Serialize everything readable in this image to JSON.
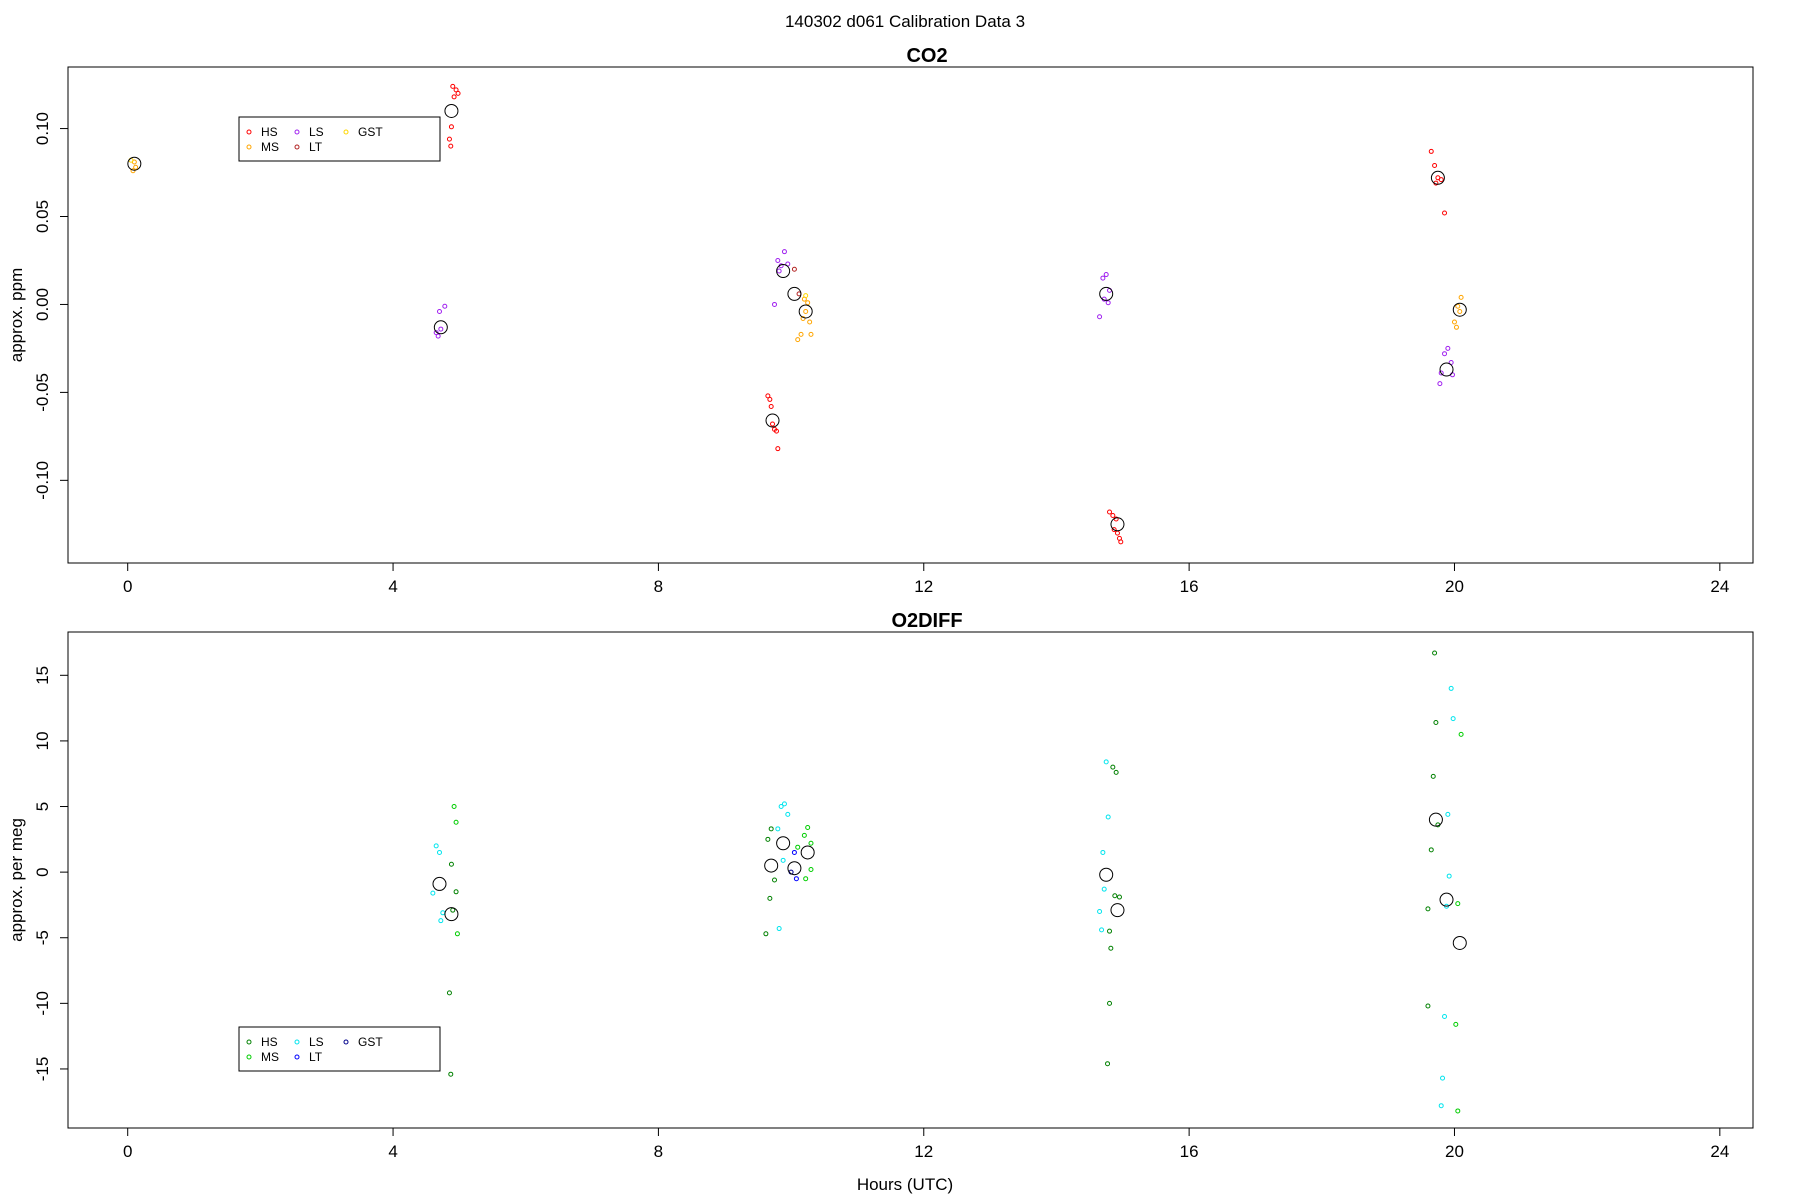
{
  "page": {
    "title": "140302   d061   Calibration Data 3"
  },
  "colors": {
    "co2": {
      "HS": "#ff0000",
      "MS": "#ffa500",
      "LS": "#a020f0",
      "LT": "#b22222",
      "GST": "#ffd700"
    },
    "o2": {
      "HS": "#008000",
      "MS": "#00cd00",
      "LS": "#00e5ee",
      "LT": "#0000ff",
      "GST": "#00008b"
    },
    "mean_marker": "#000000"
  },
  "chart_data": [
    {
      "type": "scatter",
      "title": "CO2",
      "xlabel": "",
      "ylabel": "approx. ppm",
      "xlim": [
        -0.9,
        24.5
      ],
      "ylim": [
        -0.147,
        0.135
      ],
      "xticks": [
        0,
        4,
        8,
        12,
        16,
        20,
        24
      ],
      "xtick_labels": [
        "0",
        "4",
        "8",
        "12",
        "16",
        "20",
        "24"
      ],
      "yticks": [
        -0.1,
        -0.05,
        0.0,
        0.05,
        0.1
      ],
      "ytick_labels": [
        "-0.10",
        "-0.05",
        "0.00",
        "0.05",
        "0.10"
      ],
      "grid": false,
      "legend": {
        "placement": "top-left",
        "entries": [
          {
            "name": "HS",
            "color_key": "HS"
          },
          {
            "name": "MS",
            "color_key": "MS"
          },
          {
            "name": "LS",
            "color_key": "LS"
          },
          {
            "name": "LT",
            "color_key": "LT"
          },
          {
            "name": "GST",
            "color_key": "GST"
          }
        ]
      },
      "series": [
        {
          "name": "HS",
          "points": [
            [
              4.9,
              0.124
            ],
            [
              4.95,
              0.122
            ],
            [
              4.92,
              0.118
            ],
            [
              4.98,
              0.12
            ],
            [
              4.88,
              0.101
            ],
            [
              4.85,
              0.094
            ],
            [
              4.87,
              0.09
            ],
            [
              9.65,
              -0.052
            ],
            [
              9.68,
              -0.054
            ],
            [
              9.7,
              -0.058
            ],
            [
              9.72,
              -0.068
            ],
            [
              9.75,
              -0.071
            ],
            [
              9.78,
              -0.072
            ],
            [
              9.8,
              -0.082
            ],
            [
              14.8,
              -0.118
            ],
            [
              14.85,
              -0.12
            ],
            [
              14.9,
              -0.122
            ],
            [
              14.87,
              -0.128
            ],
            [
              14.92,
              -0.13
            ],
            [
              14.95,
              -0.133
            ],
            [
              14.97,
              -0.135
            ],
            [
              19.65,
              0.087
            ],
            [
              19.7,
              0.079
            ],
            [
              19.75,
              0.072
            ],
            [
              19.8,
              0.071
            ],
            [
              19.72,
              0.069
            ],
            [
              19.85,
              0.052
            ]
          ]
        },
        {
          "name": "MS",
          "points": [
            [
              0.1,
              0.081
            ],
            [
              0.12,
              0.078
            ],
            [
              0.08,
              0.076
            ],
            [
              10.2,
              0.003
            ],
            [
              10.25,
              0.001
            ],
            [
              10.22,
              -0.004
            ],
            [
              10.18,
              -0.008
            ],
            [
              10.28,
              -0.01
            ],
            [
              10.15,
              -0.017
            ],
            [
              10.3,
              -0.017
            ],
            [
              10.1,
              -0.02
            ],
            [
              20.05,
              -0.001
            ],
            [
              20.1,
              0.004
            ],
            [
              20.08,
              -0.004
            ],
            [
              20.0,
              -0.01
            ],
            [
              20.03,
              -0.013
            ]
          ]
        },
        {
          "name": "LS",
          "points": [
            [
              4.7,
              -0.004
            ],
            [
              4.78,
              -0.001
            ],
            [
              4.65,
              -0.016
            ],
            [
              4.72,
              -0.014
            ],
            [
              4.68,
              -0.018
            ],
            [
              9.8,
              0.025
            ],
            [
              9.85,
              0.022
            ],
            [
              9.9,
              0.03
            ],
            [
              9.95,
              0.023
            ],
            [
              9.82,
              0.019
            ],
            [
              9.75,
              0.0
            ],
            [
              14.7,
              0.015
            ],
            [
              14.75,
              0.017
            ],
            [
              14.8,
              0.008
            ],
            [
              14.72,
              0.003
            ],
            [
              14.78,
              0.001
            ],
            [
              14.65,
              -0.007
            ],
            [
              19.9,
              -0.025
            ],
            [
              19.85,
              -0.028
            ],
            [
              19.95,
              -0.033
            ],
            [
              19.8,
              -0.039
            ],
            [
              19.97,
              -0.04
            ],
            [
              19.78,
              -0.045
            ]
          ]
        },
        {
          "name": "LT",
          "points": [
            [
              10.05,
              0.02
            ],
            [
              10.12,
              0.006
            ]
          ]
        },
        {
          "name": "GST",
          "points": [
            [
              0.05,
              0.082
            ],
            [
              10.22,
              0.005
            ]
          ]
        },
        {
          "name": "mean",
          "points": [
            [
              0.1,
              0.08
            ],
            [
              4.88,
              0.11
            ],
            [
              4.72,
              -0.013
            ],
            [
              9.72,
              -0.066
            ],
            [
              9.88,
              0.019
            ],
            [
              10.05,
              0.006
            ],
            [
              10.22,
              -0.004
            ],
            [
              14.75,
              0.006
            ],
            [
              14.92,
              -0.125
            ],
            [
              19.75,
              0.072
            ],
            [
              19.88,
              -0.037
            ],
            [
              20.08,
              -0.003
            ]
          ]
        }
      ]
    },
    {
      "type": "scatter",
      "title": "O2DIFF",
      "xlabel": "Hours (UTC)",
      "ylabel": "approx. per meg",
      "xlim": [
        -0.9,
        24.5
      ],
      "ylim": [
        -19.5,
        18.3
      ],
      "xticks": [
        0,
        4,
        8,
        12,
        16,
        20,
        24
      ],
      "xtick_labels": [
        "0",
        "4",
        "8",
        "12",
        "16",
        "20",
        "24"
      ],
      "yticks": [
        -15,
        -10,
        -5,
        0,
        5,
        10,
        15
      ],
      "ytick_labels": [
        "-15",
        "-10",
        "-5",
        "0",
        "5",
        "10",
        "15"
      ],
      "grid": false,
      "legend": {
        "placement": "bottom-left",
        "entries": [
          {
            "name": "HS",
            "color_key": "HS"
          },
          {
            "name": "MS",
            "color_key": "MS"
          },
          {
            "name": "LS",
            "color_key": "LS"
          },
          {
            "name": "LT",
            "color_key": "LT"
          },
          {
            "name": "GST",
            "color_key": "GST"
          }
        ]
      },
      "series": [
        {
          "name": "HS",
          "points": [
            [
              4.88,
              0.6
            ],
            [
              4.95,
              -1.5
            ],
            [
              4.85,
              -9.2
            ],
            [
              4.87,
              -15.4
            ],
            [
              4.9,
              -2.9
            ],
            [
              9.7,
              3.3
            ],
            [
              9.65,
              2.5
            ],
            [
              9.68,
              -2.0
            ],
            [
              9.75,
              -0.6
            ],
            [
              9.62,
              -4.7
            ],
            [
              14.85,
              8.0
            ],
            [
              14.9,
              7.6
            ],
            [
              14.88,
              -1.8
            ],
            [
              14.95,
              -1.9
            ],
            [
              14.8,
              -4.5
            ],
            [
              14.82,
              -5.8
            ],
            [
              14.8,
              -10.0
            ],
            [
              14.77,
              -14.6
            ],
            [
              19.7,
              16.7
            ],
            [
              19.72,
              11.4
            ],
            [
              19.68,
              7.3
            ],
            [
              19.65,
              1.7
            ],
            [
              19.75,
              3.6
            ],
            [
              19.6,
              -2.8
            ],
            [
              19.6,
              -10.2
            ]
          ]
        },
        {
          "name": "MS",
          "points": [
            [
              4.92,
              5.0
            ],
            [
              4.95,
              3.8
            ],
            [
              4.97,
              -4.7
            ],
            [
              10.25,
              3.4
            ],
            [
              10.2,
              2.8
            ],
            [
              10.3,
              2.2
            ],
            [
              10.1,
              1.9
            ],
            [
              10.22,
              -0.5
            ],
            [
              10.3,
              0.2
            ],
            [
              20.1,
              10.5
            ],
            [
              20.05,
              -2.4
            ],
            [
              20.02,
              -11.6
            ],
            [
              20.05,
              -18.2
            ]
          ]
        },
        {
          "name": "LS",
          "points": [
            [
              4.65,
              2.0
            ],
            [
              4.7,
              1.5
            ],
            [
              4.75,
              -3.1
            ],
            [
              4.72,
              -3.7
            ],
            [
              4.6,
              -1.6
            ],
            [
              9.85,
              5.0
            ],
            [
              9.9,
              5.2
            ],
            [
              9.8,
              3.3
            ],
            [
              9.95,
              4.4
            ],
            [
              9.88,
              0.9
            ],
            [
              9.82,
              -4.3
            ],
            [
              14.75,
              8.4
            ],
            [
              14.78,
              4.2
            ],
            [
              14.7,
              1.5
            ],
            [
              14.72,
              -1.3
            ],
            [
              14.65,
              -3.0
            ],
            [
              14.68,
              -4.4
            ],
            [
              19.95,
              14.0
            ],
            [
              19.98,
              11.7
            ],
            [
              19.9,
              4.4
            ],
            [
              19.92,
              -0.3
            ],
            [
              19.88,
              -2.6
            ],
            [
              19.85,
              -11.0
            ],
            [
              19.82,
              -15.7
            ],
            [
              19.8,
              -17.8
            ]
          ]
        },
        {
          "name": "LT",
          "points": [
            [
              10.05,
              1.5
            ],
            [
              10.08,
              -0.5
            ]
          ]
        },
        {
          "name": "GST",
          "points": [
            [
              10.0,
              0.0
            ]
          ]
        },
        {
          "name": "mean",
          "points": [
            [
              4.7,
              -0.9
            ],
            [
              4.88,
              -3.2
            ],
            [
              9.7,
              0.5
            ],
            [
              9.88,
              2.2
            ],
            [
              10.05,
              0.3
            ],
            [
              10.25,
              1.5
            ],
            [
              14.75,
              -0.2
            ],
            [
              14.92,
              -2.9
            ],
            [
              19.72,
              4.0
            ],
            [
              19.88,
              -2.1
            ],
            [
              20.08,
              -5.4
            ]
          ]
        }
      ]
    }
  ]
}
